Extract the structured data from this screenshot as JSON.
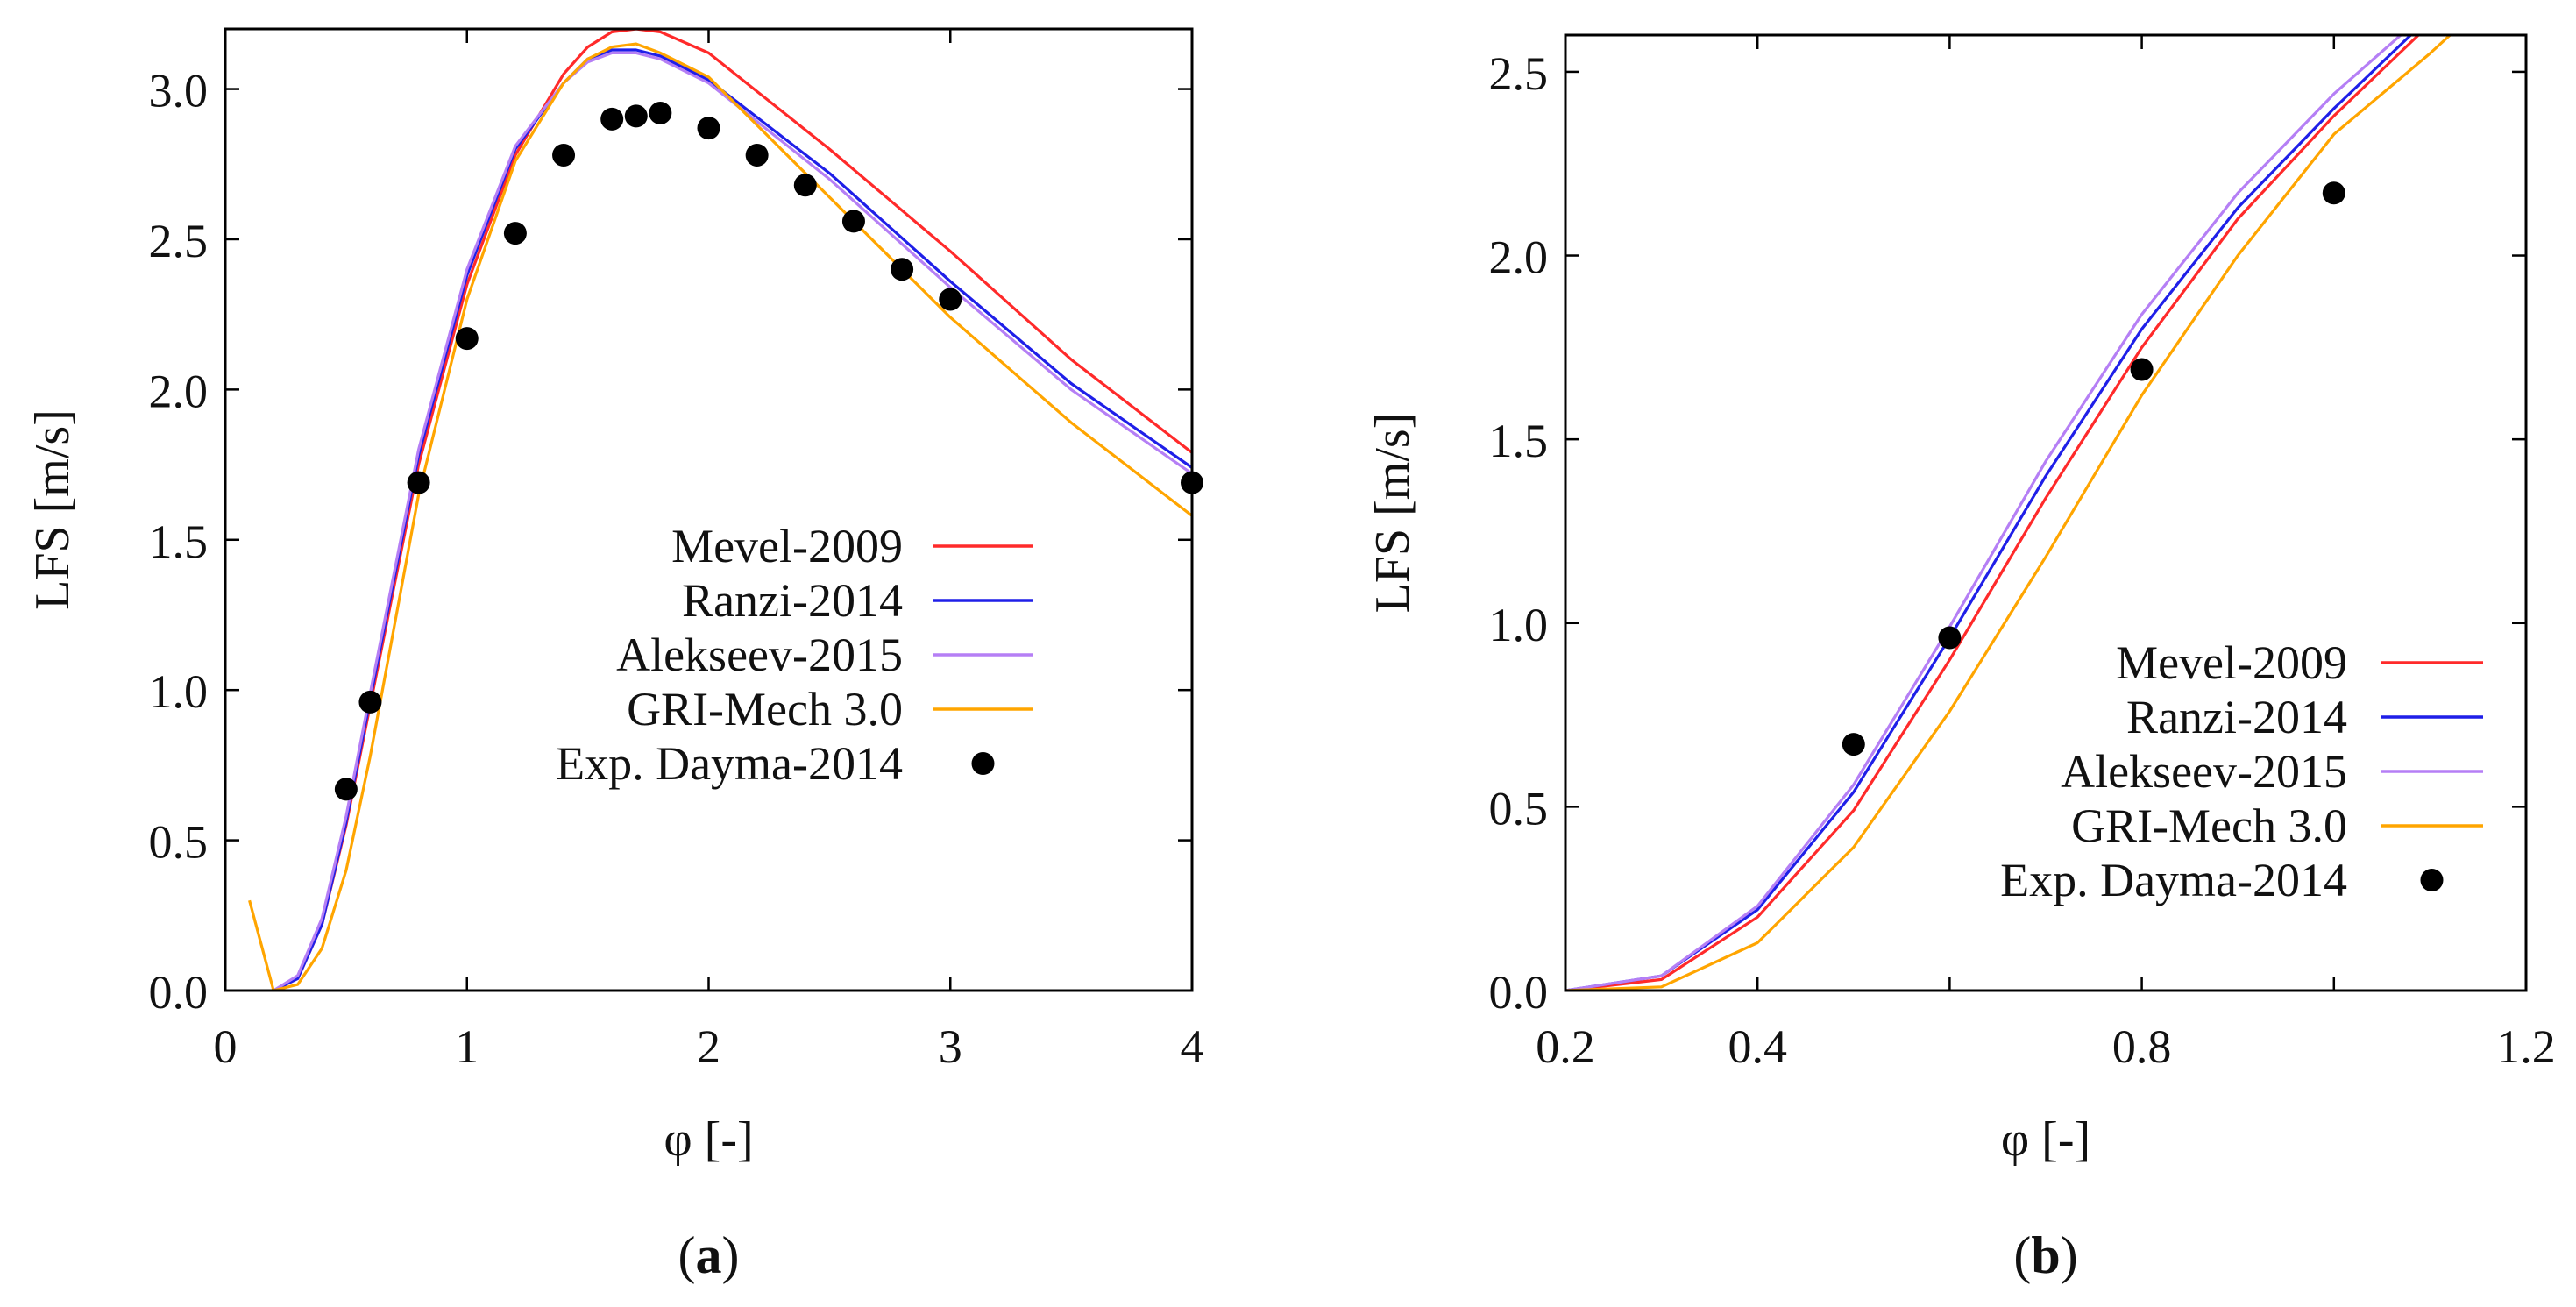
{
  "chart_data": [
    {
      "panel": "(a)",
      "panel_label": {
        "open": "(",
        "letter": "a",
        "close": ")"
      },
      "type": "line",
      "title": "",
      "xlabel": "φ [-]",
      "ylabel": "LFS [m/s]",
      "xlim": [
        0,
        4
      ],
      "ylim": [
        0,
        3.2
      ],
      "xticks": [
        0,
        1,
        2,
        3,
        4
      ],
      "xtick_labels": [
        "0",
        "1",
        "2",
        "3",
        "4"
      ],
      "yticks": [
        0,
        0.5,
        1.0,
        1.5,
        2.0,
        2.5,
        3.0
      ],
      "ytick_labels": [
        "0.0",
        "0.5",
        "1.0",
        "1.5",
        "2.0",
        "2.5",
        "3.0"
      ],
      "grid": false,
      "legend_position": "bottom-right",
      "series": [
        {
          "name": "Mevel-2009",
          "color": "#ff2a2a",
          "kind": "line",
          "x": [
            0.2,
            0.3,
            0.4,
            0.5,
            0.6,
            0.8,
            1.0,
            1.2,
            1.4,
            1.5,
            1.6,
            1.7,
            1.8,
            2.0,
            2.5,
            3.0,
            3.5,
            4.0
          ],
          "y": [
            0.0,
            0.04,
            0.22,
            0.55,
            0.95,
            1.75,
            2.35,
            2.78,
            3.05,
            3.14,
            3.19,
            3.2,
            3.19,
            3.12,
            2.8,
            2.46,
            2.1,
            1.79
          ]
        },
        {
          "name": "Ranzi-2014",
          "color": "#1f1fe8",
          "kind": "line",
          "x": [
            0.2,
            0.3,
            0.4,
            0.5,
            0.6,
            0.8,
            1.0,
            1.2,
            1.4,
            1.5,
            1.6,
            1.7,
            1.8,
            2.0,
            2.5,
            3.0,
            3.5,
            4.0
          ],
          "y": [
            0.0,
            0.04,
            0.22,
            0.56,
            0.97,
            1.78,
            2.38,
            2.8,
            3.02,
            3.1,
            3.13,
            3.13,
            3.11,
            3.03,
            2.72,
            2.36,
            2.02,
            1.74
          ]
        },
        {
          "name": "Alekseev-2015",
          "color": "#b57ff5",
          "kind": "line",
          "x": [
            0.2,
            0.3,
            0.4,
            0.5,
            0.6,
            0.8,
            1.0,
            1.2,
            1.4,
            1.5,
            1.6,
            1.7,
            1.8,
            2.0,
            2.5,
            3.0,
            3.5,
            4.0
          ],
          "y": [
            0.0,
            0.05,
            0.24,
            0.58,
            0.99,
            1.8,
            2.4,
            2.81,
            3.02,
            3.09,
            3.12,
            3.12,
            3.1,
            3.02,
            2.7,
            2.34,
            2.0,
            1.72
          ]
        },
        {
          "name": "GRI-Mech 3.0",
          "color": "#ffa500",
          "kind": "line",
          "x": [
            0.1,
            0.2,
            0.3,
            0.4,
            0.5,
            0.6,
            0.8,
            1.0,
            1.2,
            1.4,
            1.5,
            1.6,
            1.7,
            1.8,
            2.0,
            2.5,
            3.0,
            3.5,
            4.0
          ],
          "y": [
            0.3,
            0.0,
            0.02,
            0.14,
            0.4,
            0.78,
            1.65,
            2.3,
            2.76,
            3.02,
            3.1,
            3.14,
            3.15,
            3.12,
            3.04,
            2.64,
            2.24,
            1.89,
            1.58
          ]
        },
        {
          "name": "Exp. Dayma-2014",
          "color": "#000000",
          "kind": "points",
          "x": [
            0.5,
            0.6,
            0.8,
            1.0,
            1.2,
            1.4,
            1.6,
            1.7,
            1.8,
            2.0,
            2.2,
            2.4,
            2.6,
            2.8,
            3.0,
            4.0
          ],
          "y": [
            0.67,
            0.96,
            1.69,
            2.17,
            2.52,
            2.78,
            2.9,
            2.91,
            2.92,
            2.87,
            2.78,
            2.68,
            2.56,
            2.4,
            2.3,
            1.69
          ]
        }
      ]
    },
    {
      "panel": "(b)",
      "panel_label": {
        "open": "(",
        "letter": "b",
        "close": ")"
      },
      "type": "line",
      "title": "",
      "xlabel": "φ [-]",
      "ylabel": "LFS [m/s]",
      "xlim": [
        0.2,
        1.2
      ],
      "ylim": [
        0,
        2.6
      ],
      "xticks": [
        0.2,
        0.4,
        0.8,
        1.2
      ],
      "xtick_labels": [
        "0.2",
        "0.4",
        "0.8",
        "1.2"
      ],
      "xticks_unlabeled": [
        0.6,
        1.0
      ],
      "yticks": [
        0,
        0.5,
        1.0,
        1.5,
        2.0,
        2.5
      ],
      "ytick_labels": [
        "0.0",
        "0.5",
        "1.0",
        "1.5",
        "2.0",
        "2.5"
      ],
      "grid": false,
      "legend_position": "bottom-right",
      "series": [
        {
          "name": "Mevel-2009",
          "color": "#ff2a2a",
          "kind": "line",
          "x": [
            0.2,
            0.3,
            0.4,
            0.5,
            0.6,
            0.7,
            0.8,
            0.9,
            1.0,
            1.1
          ],
          "y": [
            0.0,
            0.03,
            0.2,
            0.49,
            0.9,
            1.34,
            1.75,
            2.1,
            2.38,
            2.63
          ]
        },
        {
          "name": "Ranzi-2014",
          "color": "#1f1fe8",
          "kind": "line",
          "x": [
            0.2,
            0.3,
            0.4,
            0.5,
            0.6,
            0.7,
            0.8,
            0.9,
            1.0,
            1.1
          ],
          "y": [
            0.0,
            0.04,
            0.22,
            0.54,
            0.96,
            1.4,
            1.8,
            2.13,
            2.4,
            2.65
          ]
        },
        {
          "name": "Alekseev-2015",
          "color": "#b57ff5",
          "kind": "line",
          "x": [
            0.2,
            0.3,
            0.4,
            0.5,
            0.6,
            0.7,
            0.8,
            0.9,
            1.0,
            1.1
          ],
          "y": [
            0.0,
            0.04,
            0.23,
            0.56,
            0.99,
            1.44,
            1.84,
            2.17,
            2.44,
            2.67
          ]
        },
        {
          "name": "GRI-Mech 3.0",
          "color": "#ffa500",
          "kind": "line",
          "x": [
            0.2,
            0.3,
            0.4,
            0.5,
            0.6,
            0.7,
            0.8,
            0.9,
            1.0,
            1.1,
            1.15
          ],
          "y": [
            0.0,
            0.01,
            0.13,
            0.39,
            0.76,
            1.18,
            1.62,
            2.0,
            2.33,
            2.55,
            2.67
          ]
        },
        {
          "name": "Exp. Dayma-2014",
          "color": "#000000",
          "kind": "points",
          "x": [
            0.5,
            0.6,
            0.8,
            1.0
          ],
          "y": [
            0.67,
            0.96,
            1.69,
            2.17
          ]
        }
      ]
    }
  ]
}
